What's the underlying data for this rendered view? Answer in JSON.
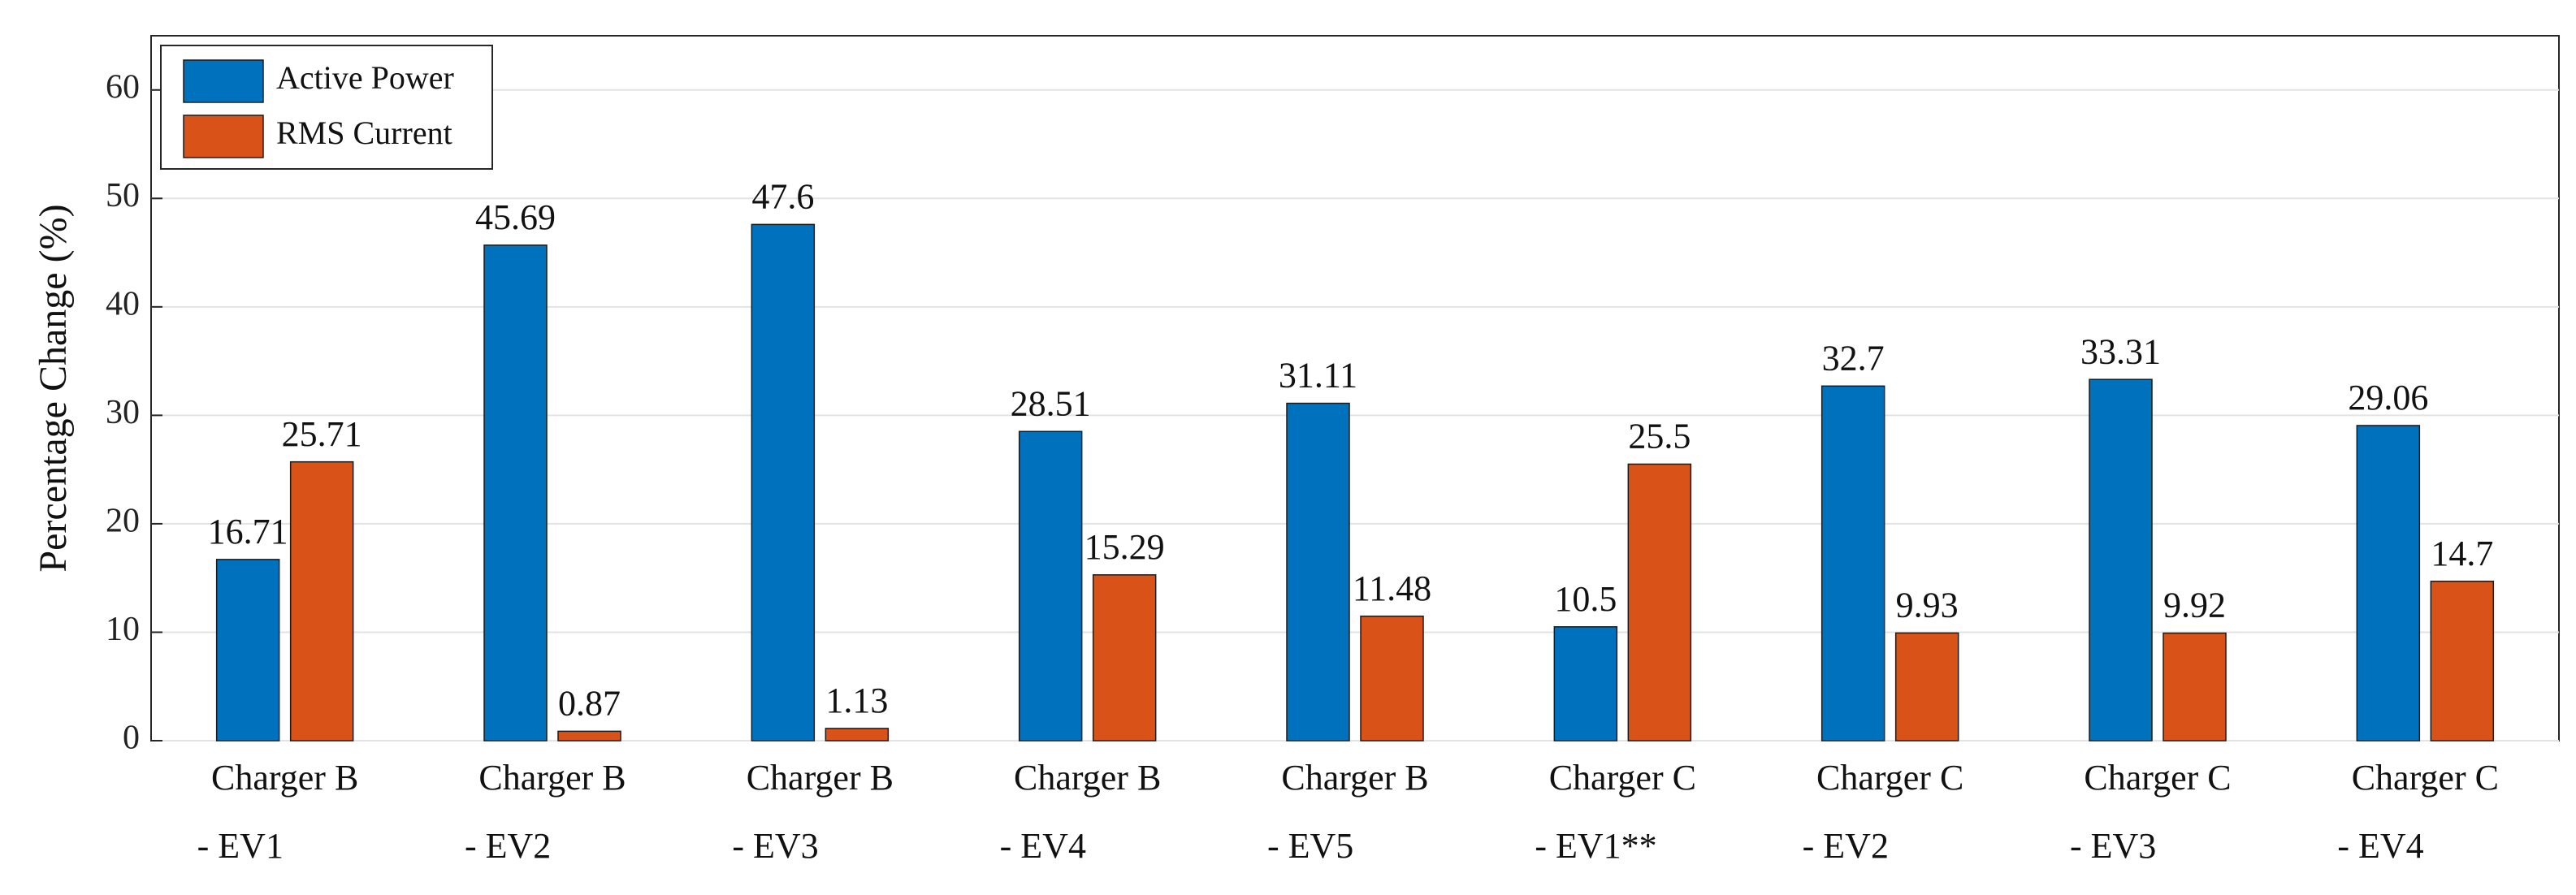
{
  "chart_data": {
    "type": "bar",
    "y_label": "Percentage Change (%)",
    "categories": [
      [
        "Charger B",
        "- EV1"
      ],
      [
        "Charger B",
        "- EV2"
      ],
      [
        "Charger B",
        "- EV3"
      ],
      [
        "Charger B",
        "- EV4"
      ],
      [
        "Charger B",
        "- EV5"
      ],
      [
        "Charger C",
        "- EV1**"
      ],
      [
        "Charger C",
        "- EV2"
      ],
      [
        "Charger C",
        "- EV3"
      ],
      [
        "Charger C",
        "- EV4"
      ]
    ],
    "series": [
      {
        "name": "Active Power",
        "color": "#0072bd",
        "values": [
          16.71,
          45.69,
          47.6,
          28.51,
          31.11,
          10.5,
          32.7,
          33.31,
          29.06
        ]
      },
      {
        "name": "RMS Current",
        "color": "#d95319",
        "values": [
          25.71,
          0.87,
          1.13,
          15.29,
          11.48,
          25.5,
          9.93,
          9.92,
          14.7
        ]
      }
    ],
    "ylim": [
      0,
      65
    ],
    "yticks": [
      0,
      10,
      20,
      30,
      40,
      50,
      60
    ],
    "grid": true,
    "legend": "upper left"
  }
}
